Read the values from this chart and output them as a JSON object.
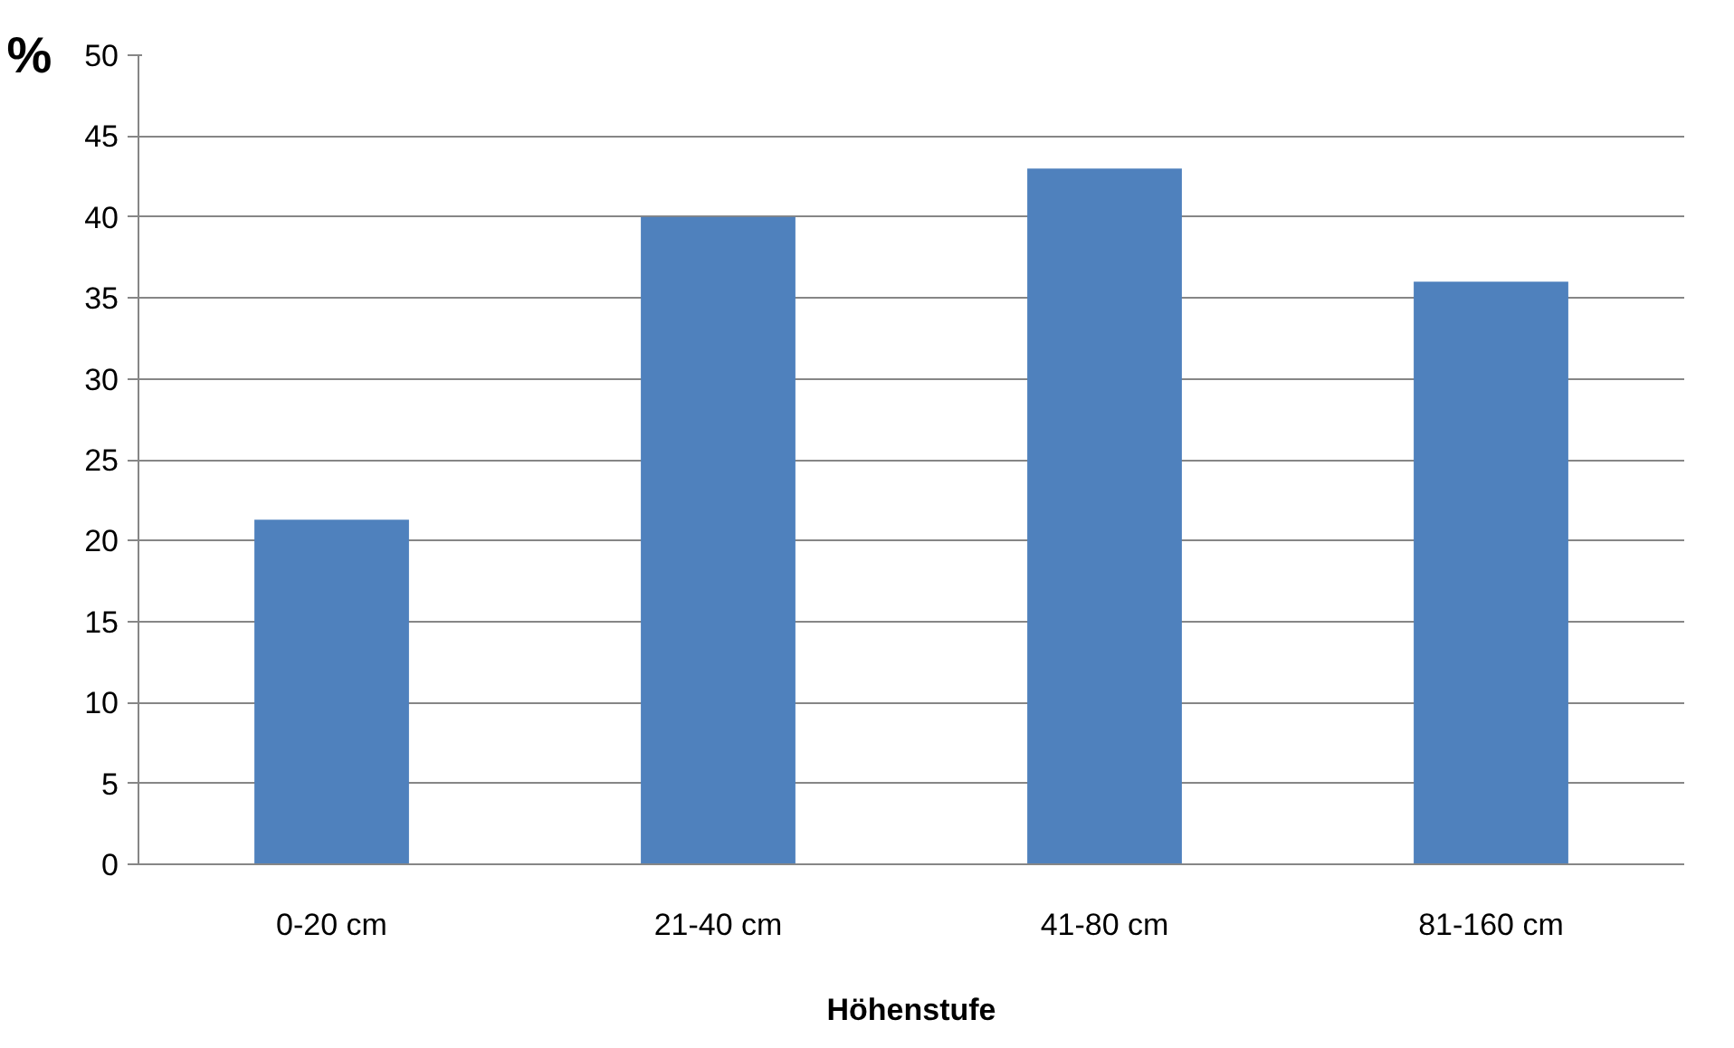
{
  "chart_data": {
    "type": "bar",
    "xlabel": "Höhenstufe",
    "ylabel": "%",
    "categories": [
      "0-20 cm",
      "21-40 cm",
      "41-80 cm",
      "81-160 cm"
    ],
    "values": [
      21.3,
      40,
      43,
      36
    ],
    "color": "#4f81bd",
    "ylim": [
      0,
      50
    ],
    "yticks": [
      0,
      5,
      10,
      15,
      20,
      25,
      30,
      35,
      40,
      45,
      50
    ],
    "grid": "y"
  }
}
